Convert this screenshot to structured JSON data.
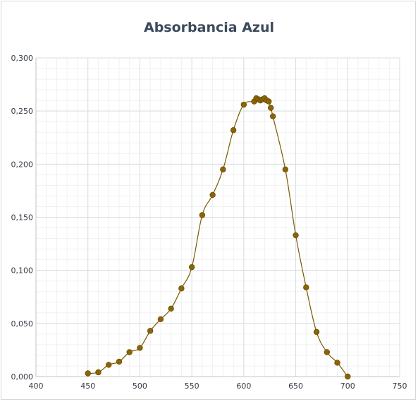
{
  "chart_data": {
    "type": "scatter",
    "title": "Absorbancia Azul",
    "xlabel": "",
    "ylabel": "",
    "xlim": [
      400,
      750
    ],
    "ylim": [
      0,
      0.3
    ],
    "x_ticks": [
      "400",
      "450",
      "500",
      "550",
      "600",
      "650",
      "700",
      "750"
    ],
    "y_ticks": [
      "0,000",
      "0,050",
      "0,100",
      "0,150",
      "0,200",
      "0,250",
      "0,300"
    ],
    "grid": true,
    "legend": "none",
    "series_color": "#7a5a00",
    "marker_color": "#8a6508",
    "series": [
      {
        "x": [
          450,
          460,
          470,
          480,
          490,
          500,
          510,
          520,
          530,
          540,
          550,
          560,
          570,
          580,
          590,
          600,
          610,
          612,
          614,
          616,
          618,
          620,
          622,
          624,
          626,
          628,
          640,
          650,
          660,
          670,
          680,
          690,
          700
        ],
        "y": [
          0.003,
          0.004,
          0.011,
          0.014,
          0.023,
          0.027,
          0.043,
          0.054,
          0.064,
          0.083,
          0.103,
          0.152,
          0.171,
          0.195,
          0.232,
          0.256,
          0.259,
          0.262,
          0.261,
          0.26,
          0.261,
          0.262,
          0.26,
          0.259,
          0.253,
          0.245,
          0.195,
          0.133,
          0.084,
          0.042,
          0.023,
          0.013,
          0.0
        ]
      }
    ]
  }
}
